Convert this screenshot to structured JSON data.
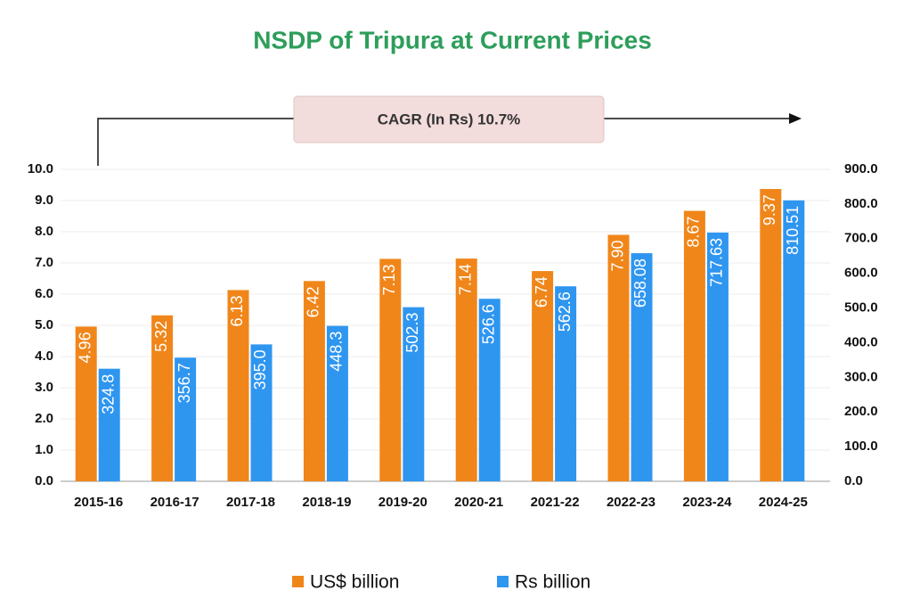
{
  "chart_data": {
    "type": "bar",
    "title": "NSDP of Tripura at Current Prices",
    "annotation": "CAGR (In Rs) 10.7%",
    "categories": [
      "2015-16",
      "2016-17",
      "2017-18",
      "2018-19",
      "2019-20",
      "2020-21",
      "2021-22",
      "2022-23",
      "2023-24",
      "2024-25"
    ],
    "series": [
      {
        "name": "US$ billion",
        "color": "#f0861a",
        "axis": "y",
        "values": [
          4.96,
          5.32,
          6.13,
          6.42,
          7.13,
          7.14,
          6.74,
          7.9,
          8.67,
          9.37
        ],
        "value_labels": [
          "4.96",
          "5.32",
          "6.13",
          "6.42",
          "7.13",
          "7.14",
          "6.74",
          "7.90",
          "8.67",
          "9.37"
        ]
      },
      {
        "name": "Rs billion",
        "color": "#2f96f0",
        "axis": "y2",
        "values": [
          324.8,
          356.7,
          395,
          448.3,
          502.3,
          526.6,
          562.6,
          658.08,
          717.63,
          810.51
        ],
        "value_labels": [
          "324.8",
          "356.7",
          "395.0",
          "448.3",
          "502.3",
          "526.6",
          "562.6",
          "658.08",
          "717.63",
          "810.51"
        ]
      }
    ],
    "ylim": [
      0,
      10
    ],
    "yticks": [
      {
        "value": 0,
        "label": "0.0"
      },
      {
        "value": 1,
        "label": "1.0"
      },
      {
        "value": 2,
        "label": "2.0"
      },
      {
        "value": 3,
        "label": "3.0"
      },
      {
        "value": 4,
        "label": "4.0"
      },
      {
        "value": 5,
        "label": "5.0"
      },
      {
        "value": 6,
        "label": "6.0"
      },
      {
        "value": 7,
        "label": "7.0"
      },
      {
        "value": 8,
        "label": "8.0"
      },
      {
        "value": 9,
        "label": "9.0"
      },
      {
        "value": 10,
        "label": "10.0"
      }
    ],
    "y2lim": [
      0,
      900
    ],
    "y2ticks": [
      {
        "value": 0,
        "label": "0.0"
      },
      {
        "value": 100,
        "label": "100.0"
      },
      {
        "value": 200,
        "label": "200.0"
      },
      {
        "value": 300,
        "label": "300.0"
      },
      {
        "value": 400,
        "label": "400.0"
      },
      {
        "value": 500,
        "label": "500.0"
      },
      {
        "value": 600,
        "label": "600.0"
      },
      {
        "value": 700,
        "label": "700.0"
      },
      {
        "value": 800,
        "label": "800.0"
      },
      {
        "value": 900,
        "label": "900.0"
      }
    ],
    "grid": true,
    "legend": "bottom"
  }
}
